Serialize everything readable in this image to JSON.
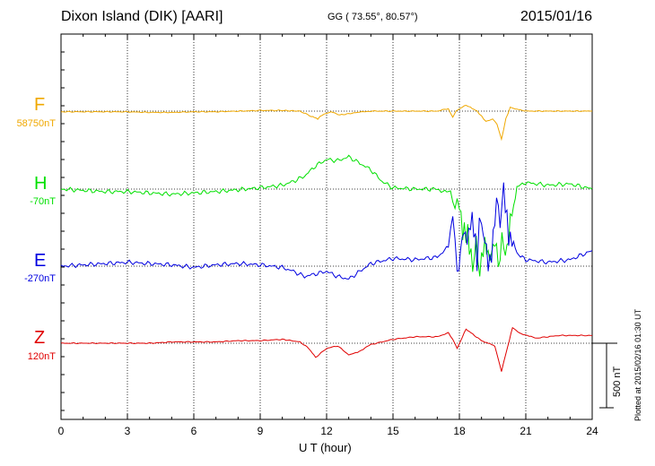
{
  "header": {
    "station": "Dixon Island (DIK)  [AARI]",
    "coords": "GG ( 73.55°,  80.57°)",
    "date": "2015/01/16"
  },
  "footer": {
    "plotted": "Plotted at 2015/02/16 01:30 UT",
    "scale_label": "500 nT"
  },
  "colors": {
    "F": "#f0a800",
    "H": "#00e000",
    "E": "#0000e0",
    "Z": "#e00000"
  },
  "chart_data": {
    "type": "line",
    "xlabel": "U T (hour)",
    "xlim": [
      0,
      24
    ],
    "xticks": [
      0,
      3,
      6,
      9,
      12,
      15,
      18,
      21,
      24
    ],
    "scale_bar_nT": 500,
    "grid": "dotted vertical every 3 h, dotted baselines per channel",
    "series": [
      {
        "name": "F",
        "baseline_label": "58750nT",
        "color": "#f0a800",
        "x": [
          0,
          1,
          2,
          3,
          4,
          5,
          6,
          7,
          8,
          9,
          10,
          10.8,
          11.3,
          11.6,
          11.8,
          12.2,
          12.6,
          13,
          13.4,
          14,
          15,
          16,
          17,
          17.5,
          17.7,
          17.85,
          18,
          18.3,
          18.5,
          18.8,
          19,
          19.2,
          19.5,
          19.7,
          19.9,
          20.1,
          20.3,
          20.6,
          21,
          22,
          23,
          24
        ],
        "y": [
          -5,
          -5,
          -5,
          -5,
          -10,
          -10,
          -5,
          -5,
          0,
          5,
          5,
          0,
          -40,
          -60,
          -30,
          -5,
          -30,
          -20,
          -10,
          0,
          0,
          0,
          0,
          20,
          -50,
          0,
          20,
          45,
          30,
          0,
          -40,
          -80,
          -60,
          -100,
          -220,
          -60,
          30,
          15,
          0,
          0,
          0,
          0
        ]
      },
      {
        "name": "H",
        "baseline_label": "-70nT",
        "color": "#00e000",
        "x": [
          0,
          1,
          2,
          3,
          4,
          5,
          6,
          7,
          8,
          9,
          10,
          10.5,
          11,
          11.5,
          12,
          12.5,
          13,
          13.5,
          14,
          14.5,
          15,
          16,
          17,
          17.6,
          17.8,
          18,
          18.3,
          18.6,
          19,
          19.3,
          19.6,
          20,
          20.3,
          20.6,
          21,
          22,
          23,
          24
        ],
        "y": [
          0,
          -10,
          -20,
          -20,
          -30,
          -40,
          -30,
          -20,
          -5,
          10,
          30,
          60,
          100,
          180,
          230,
          220,
          250,
          200,
          150,
          60,
          10,
          0,
          0,
          -30,
          -150,
          -100,
          -400,
          -500,
          -550,
          -450,
          -500,
          -480,
          -300,
          20,
          50,
          30,
          40,
          0
        ]
      },
      {
        "name": "E",
        "baseline_label": "-270nT",
        "color": "#0000e0",
        "x": [
          0,
          1,
          2,
          3,
          4,
          5,
          6,
          7,
          8,
          9,
          10,
          10.5,
          11,
          11.5,
          12,
          12.5,
          13,
          13.5,
          14,
          14.5,
          15,
          16,
          17,
          17.5,
          17.7,
          17.9,
          18.2,
          18.5,
          18.8,
          19,
          19.3,
          19.6,
          20,
          20.3,
          20.6,
          21,
          22,
          23,
          24
        ],
        "y": [
          0,
          10,
          20,
          30,
          20,
          10,
          -10,
          10,
          20,
          10,
          -10,
          -40,
          -80,
          -60,
          -40,
          -80,
          -100,
          -40,
          20,
          40,
          60,
          50,
          70,
          150,
          400,
          0,
          200,
          350,
          100,
          400,
          -50,
          380,
          500,
          250,
          100,
          50,
          30,
          50,
          120
        ]
      },
      {
        "name": "Z",
        "baseline_label": "120nT",
        "color": "#e00000",
        "x": [
          0,
          1,
          2,
          3,
          4,
          5,
          6,
          7,
          8,
          9,
          10,
          10.8,
          11.2,
          11.5,
          12,
          12.5,
          13,
          13.4,
          14,
          15,
          16,
          17,
          17.5,
          17.7,
          17.9,
          18.3,
          18.6,
          19,
          19.3,
          19.6,
          19.9,
          20.1,
          20.4,
          20.8,
          21.5,
          22.5,
          24
        ],
        "y": [
          0,
          0,
          0,
          0,
          0,
          10,
          10,
          10,
          20,
          20,
          30,
          10,
          -40,
          -110,
          -40,
          -20,
          -90,
          -70,
          -10,
          30,
          50,
          50,
          80,
          30,
          -40,
          110,
          70,
          20,
          0,
          -20,
          -220,
          -80,
          120,
          70,
          40,
          60,
          60
        ]
      }
    ]
  }
}
